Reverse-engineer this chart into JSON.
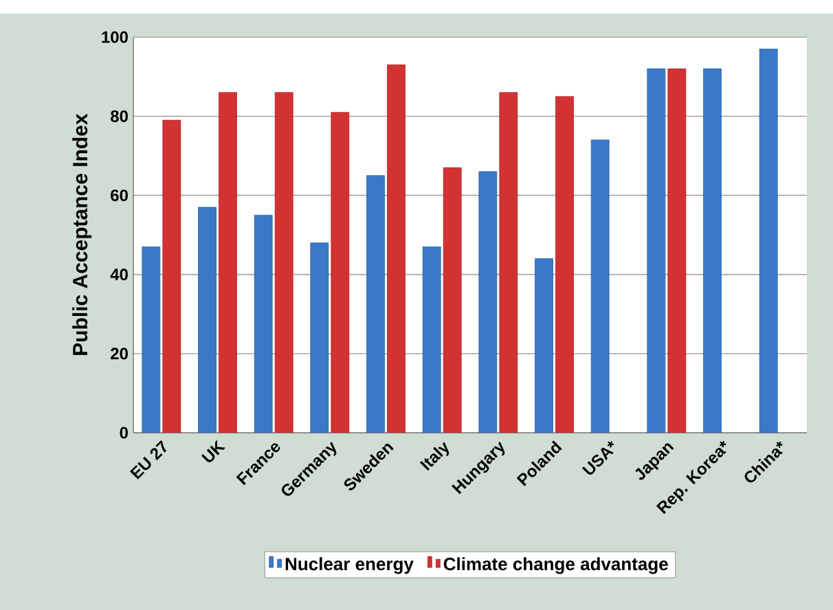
{
  "chart_data": {
    "type": "bar",
    "ylabel": "Public Acceptance Index",
    "categories": [
      "EU 27",
      "UK",
      "France",
      "Germany",
      "Sweden",
      "Italy",
      "Hungary",
      "Poland",
      "USA*",
      "Japan",
      "Rep. Korea*",
      "China*"
    ],
    "series": [
      {
        "name": "Nuclear energy",
        "color": "#3a78c9",
        "values": [
          47,
          57,
          55,
          48,
          65,
          47,
          66,
          44,
          74,
          92,
          92,
          97
        ]
      },
      {
        "name": "Climate change advantage",
        "color": "#d23232",
        "values": [
          79,
          86,
          86,
          81,
          93,
          67,
          86,
          85,
          null,
          92,
          null,
          null
        ]
      }
    ],
    "ylim": [
      0,
      100
    ],
    "yticks": [
      0,
      20,
      40,
      60,
      80,
      100
    ],
    "grid": "y",
    "legend": "bottom"
  }
}
